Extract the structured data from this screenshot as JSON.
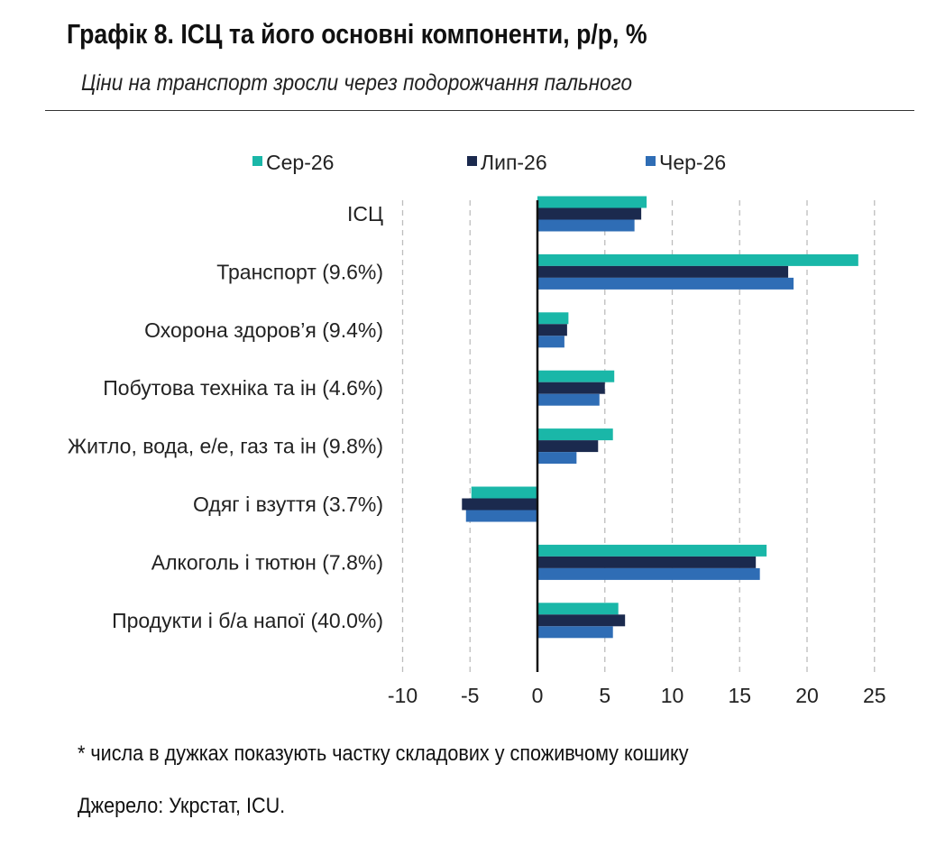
{
  "header": {
    "title": "Графік 8. ІСЦ та його основні компоненти, р/р, %",
    "subtitle": "Ціни на транспорт зросли через подорожчання пального"
  },
  "footer": {
    "footnote": "* числа в дужках показують частку складових у споживчому кошику",
    "source": "Джерело: Укрстат, ICU."
  },
  "chart_data": {
    "type": "bar",
    "orientation": "horizontal",
    "categories": [
      "ІСЦ",
      "Транспорт (9.6%)",
      "Охорона здоров’я (9.4%)",
      "Побутова техніка та ін (4.6%)",
      "Житло, вода, е/е, газ та ін (9.8%)",
      "Одяг і взуття (3.7%)",
      "Алкоголь і тютюн (7.8%)",
      "Продукти і б/а напої (40.0%)"
    ],
    "series": [
      {
        "name": "Сер-26",
        "color": "#1ab7a8",
        "values": [
          8.1,
          23.8,
          2.3,
          5.7,
          5.6,
          -4.9,
          17.0,
          6.0
        ]
      },
      {
        "name": "Лип-26",
        "color": "#1b2a4e",
        "values": [
          7.7,
          18.6,
          2.2,
          5.0,
          4.5,
          -5.6,
          16.2,
          6.5
        ]
      },
      {
        "name": "Чер-26",
        "color": "#2f6db5",
        "values": [
          7.2,
          19.0,
          2.0,
          4.6,
          2.9,
          -5.3,
          16.5,
          5.6
        ]
      }
    ],
    "x_ticks": [
      -10,
      -5,
      0,
      5,
      10,
      15,
      20,
      25
    ],
    "xlim": [
      -10,
      25
    ],
    "grid": "vertical dashed",
    "legend": "top"
  }
}
